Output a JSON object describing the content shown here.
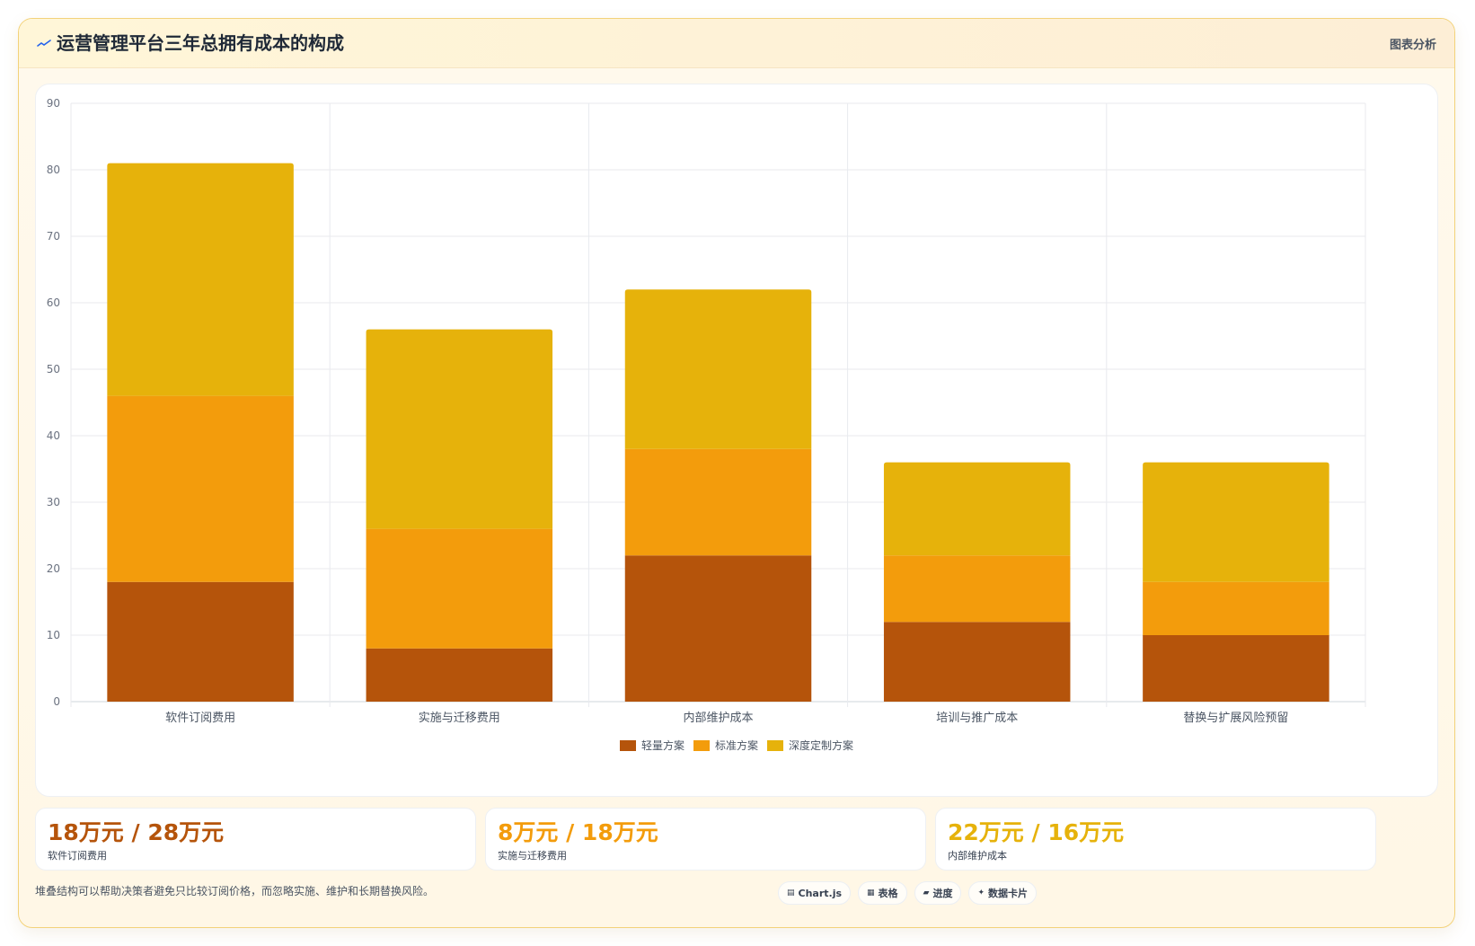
{
  "header": {
    "title": "运营管理平台三年总拥有成本的构成",
    "link": "图表分析",
    "title_icon": "sparkline-icon"
  },
  "colors": {
    "light": "#b5540b",
    "standard": "#f39c0c",
    "deep": "#e6b20b"
  },
  "chart_data": {
    "type": "bar",
    "stacked": true,
    "categories": [
      "软件订阅费用",
      "实施与迁移费用",
      "内部维护成本",
      "培训与推广成本",
      "替换与扩展风险预留"
    ],
    "series": [
      {
        "name": "轻量方案",
        "values": [
          18,
          8,
          22,
          12,
          10
        ],
        "color": "#b5540b"
      },
      {
        "name": "标准方案",
        "values": [
          28,
          18,
          16,
          10,
          8
        ],
        "color": "#f39c0c"
      },
      {
        "name": "深度定制方案",
        "values": [
          35,
          30,
          24,
          14,
          18
        ],
        "color": "#e6b20b"
      }
    ],
    "ylim": [
      0,
      90
    ],
    "yticks": [
      0,
      10,
      20,
      30,
      40,
      50,
      60,
      70,
      80,
      90
    ],
    "grid": true,
    "legend": "bottom"
  },
  "stats": [
    {
      "value": "18万元 / 28万元",
      "label": "软件订阅费用",
      "color": "#b5540b"
    },
    {
      "value": "8万元 / 18万元",
      "label": "实施与迁移费用",
      "color": "#f39c0c"
    },
    {
      "value": "22万元 / 16万元",
      "label": "内部维护成本",
      "color": "#e6b20b"
    }
  ],
  "footnote": "堆叠结构可以帮助决策者避免只比较订阅价格，而忽略实施、维护和长期替换风险。",
  "chips": [
    {
      "icon": "chart-icon",
      "glyph": "▤",
      "label": "Chart.js"
    },
    {
      "icon": "table-icon",
      "glyph": "▦",
      "label": "表格"
    },
    {
      "icon": "progress-icon",
      "glyph": "▰",
      "label": "进度"
    },
    {
      "icon": "sparkle-icon",
      "glyph": "✦",
      "label": "数据卡片"
    }
  ]
}
